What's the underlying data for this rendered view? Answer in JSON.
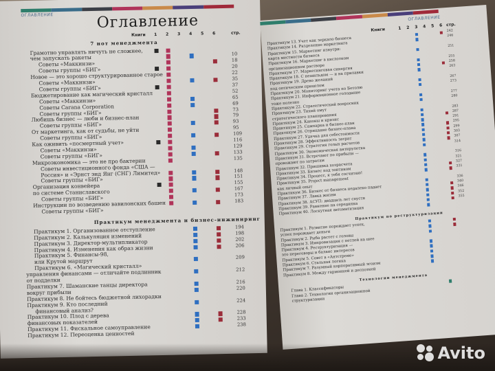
{
  "colors": {
    "book1": "#2a2a2a",
    "book2": "#b0345a",
    "book3": "#2f6fc0",
    "book4": "#2e7d6b",
    "book6": "#9b2d3a",
    "stripe": [
      "#2e7d6b",
      "#3a6d8a",
      "#3c3f46",
      "#b0345a",
      "#c98a4a",
      "#4a3f7a",
      "#a02a3a"
    ]
  },
  "left": {
    "header": "ОГЛАВЛЕНИЕ",
    "title": "Оглавление",
    "columns": {
      "label": "Книги",
      "nums": [
        "1",
        "2",
        "3",
        "4",
        "5",
        "6"
      ],
      "page": "стр."
    },
    "sections": [
      {
        "title": "7 нот менеджмента",
        "rows": [
          {
            "t": "Грамотно управлять ничуть не сложнее,",
            "i": 1,
            "m": [
              1,
              2
            ],
            "p": ""
          },
          {
            "t": "чем запускать ракеты",
            "i": 1,
            "m": [
              2,
              4
            ],
            "p": "10"
          },
          {
            "t": "Советы «Маккинзи»",
            "i": 2,
            "m": [
              2,
              6
            ],
            "p": "18"
          },
          {
            "t": "Советы группы «БИГ»",
            "i": 2,
            "m": [
              1,
              2
            ],
            "p": "20"
          },
          {
            "t": "Новое — это хорошо структурированное старое",
            "i": 1,
            "m": [
              2
            ],
            "p": "22"
          },
          {
            "t": "Советы «Маккинзи»",
            "i": 2,
            "m": [
              2,
              4,
              6
            ],
            "p": "35"
          },
          {
            "t": "Советы группы «БИГ»",
            "i": 2,
            "m": [
              1,
              2
            ],
            "p": "37"
          },
          {
            "t": "Бюджетирование как магический кристалл",
            "i": 1,
            "m": [
              2
            ],
            "p": "52"
          },
          {
            "t": "Советы «Маккинзи»",
            "i": 2,
            "m": [
              2,
              4
            ],
            "p": "65"
          },
          {
            "t": "Советы Carana Corporation",
            "i": 2,
            "m": [
              2,
              4
            ],
            "p": "69"
          },
          {
            "t": "Советы группы «БИГ»",
            "i": 2,
            "m": [
              2,
              6
            ],
            "p": "73"
          },
          {
            "t": "Любишь бизнес — люби и бизнес-план",
            "i": 1,
            "m": [
              2,
              6
            ],
            "p": "79"
          },
          {
            "t": "Советы группы «БИГ»",
            "i": 2,
            "m": [
              2,
              4,
              6
            ],
            "p": "93"
          },
          {
            "t": "От маркетинга, как от судьбы, не уйти",
            "i": 1,
            "m": [
              2
            ],
            "p": "95"
          },
          {
            "t": "Советы группы «БИГ»",
            "i": 2,
            "m": [
              2,
              4,
              6
            ],
            "p": "109"
          },
          {
            "t": "Как оживить «посмертный учет»",
            "i": 1,
            "m": [
              1,
              2
            ],
            "p": "116"
          },
          {
            "t": "Советы «Маккинзи»",
            "i": 2,
            "m": [
              2,
              4
            ],
            "p": "129"
          },
          {
            "t": "Советы группы «БИГ»",
            "i": 2,
            "m": [
              2,
              4,
              6
            ],
            "p": "133"
          },
          {
            "t": "Микроэкономика — это не про бактерии",
            "i": 1,
            "m": [
              2
            ],
            "p": "135"
          },
          {
            "t": "Советы инвестиционного фонда «США —",
            "i": 2,
            "m": [],
            "p": ""
          },
          {
            "t": "Россия» и «Эрнст энд Янг (СНГ) Лимитед»",
            "i": 2,
            "m": [
              2,
              4,
              6
            ],
            "p": "148"
          },
          {
            "t": "Советы группы «БИГ»",
            "i": 2,
            "m": [
              2,
              4,
              6
            ],
            "p": "151"
          },
          {
            "t": "Организация конвейера",
            "i": 1,
            "m": [
              1,
              2
            ],
            "p": "155"
          },
          {
            "t": "по системе Станиславского",
            "i": 1,
            "m": [
              2,
              4,
              6
            ],
            "p": "167"
          },
          {
            "t": "Советы группы «БИГ»",
            "i": 2,
            "m": [
              2
            ],
            "p": "173"
          },
          {
            "t": "Инструкции по возведению вавилонских башен",
            "i": 1,
            "m": [
              2,
              4,
              6
            ],
            "p": "183"
          },
          {
            "t": "Советы группы «БИГ»",
            "i": 2,
            "m": [],
            "p": ""
          }
        ]
      },
      {
        "title": "Практикум менеджмента и бизнес-инжиниринг",
        "rows": [
          {
            "t": "Практикум 1. Организованное отступление",
            "i": 1,
            "m": [
              4,
              6
            ],
            "p": "194"
          },
          {
            "t": "Практикум 2. Калькуляция изменений",
            "i": 1,
            "m": [
              4,
              6
            ],
            "p": "198"
          },
          {
            "t": "Практикум 3. Директор-мультипликатор",
            "i": 1,
            "m": [
              4,
              6
            ],
            "p": "202"
          },
          {
            "t": "Практикум 4. Изменения как образ жизни",
            "i": 1,
            "m": [
              4,
              6
            ],
            "p": "206"
          },
          {
            "t": "Практикум 5. Финансы-98,",
            "i": 1,
            "m": [],
            "p": ""
          },
          {
            "t": "или Крутой маршрут",
            "i": 1,
            "m": [
              4
            ],
            "p": "209"
          },
          {
            "t": "Практикум 6. «Магический кристалл»",
            "i": 1,
            "m": [],
            "p": ""
          },
          {
            "t": "управления финансами — отличайте подлинник",
            "i": 0,
            "m": [
              4
            ],
            "p": "212"
          },
          {
            "t": "от подделки",
            "i": 0,
            "m": [],
            "p": ""
          },
          {
            "t": "Практикум 7. Шаманские танцы директора",
            "i": 0,
            "m": [
              4
            ],
            "p": "216"
          },
          {
            "t": "вокруг прибыли",
            "i": 0,
            "m": [
              4
            ],
            "p": "220"
          },
          {
            "t": "Практикум 8. Не бойтесь бюджетной лихорадки",
            "i": 0,
            "m": [],
            "p": ""
          },
          {
            "t": "Практикум 9. Кто последний",
            "i": 0,
            "m": [
              4
            ],
            "p": "224"
          },
          {
            "t": "финансовый анализ?",
            "i": 1,
            "m": [],
            "p": ""
          },
          {
            "t": "Практикум 10. Плод с дерева",
            "i": 0,
            "m": [
              4,
              6
            ],
            "p": "228"
          },
          {
            "t": "финансовых показателей",
            "i": 0,
            "m": [
              4,
              6
            ],
            "p": "233"
          },
          {
            "t": "Практикум 11. Фискальное самоуправление",
            "i": 0,
            "m": [
              4
            ],
            "p": "238"
          },
          {
            "t": "Практикум 12. Переоценка ценностей",
            "i": 0,
            "m": [],
            "p": ""
          }
        ]
      }
    ]
  },
  "right": {
    "header": "ОГЛАВЛЕНИЕ",
    "columns": {
      "label": "Книги",
      "nums": [
        "1",
        "2",
        "3",
        "4",
        "5",
        "6"
      ],
      "page": "стр."
    },
    "sections": [
      {
        "title": "",
        "rows": [
          {
            "t": "Практикум 13. Учет как зеркало бизнеса",
            "i": 0,
            "m": [
              3,
              6
            ],
            "p": "242"
          },
          {
            "t": "Практикум 14. Разделение маркетинга",
            "i": 0,
            "m": [
              3
            ],
            "p": "246"
          },
          {
            "t": "Практикум 15. Маркетинг изнутри:",
            "i": 0,
            "m": [],
            "p": ""
          },
          {
            "t": "карта местности бизнеса",
            "i": 0,
            "m": [
              3
            ],
            "p": "251"
          },
          {
            "t": "Практикум 16. Маркетинг в кислотном",
            "i": 0,
            "m": [],
            "p": ""
          },
          {
            "t": "организационном растворе",
            "i": 0,
            "m": [
              3
            ],
            "p": "255"
          },
          {
            "t": "Практикум 17. Маркетинговая синергия",
            "i": 0,
            "m": [
              3,
              6
            ],
            "p": "258"
          },
          {
            "t": "Практикум 18. С нешильдом — и на прилавки",
            "i": 0,
            "m": [
              3
            ],
            "p": "263"
          },
          {
            "t": "Практикум 19. Древо желаний",
            "i": 0,
            "m": [],
            "p": ""
          },
          {
            "t": "под оптическим прицелом",
            "i": 0,
            "m": [
              3
            ],
            "p": "267"
          },
          {
            "t": "Практикум 20. Мониторинг учета по Бетолю",
            "i": 0,
            "m": [
              3
            ],
            "p": "273"
          },
          {
            "t": "Практикум 21. Информационное голодание",
            "i": 0,
            "m": [],
            "p": ""
          },
          {
            "t": "тоже полезно",
            "i": 0,
            "m": [
              3
            ],
            "p": "277"
          },
          {
            "t": "Практикум 22. Стратегический вопросник",
            "i": 0,
            "m": [
              3
            ],
            "p": "280"
          },
          {
            "t": "Практикум 23. Тихий омут",
            "i": 0,
            "m": [],
            "p": ""
          },
          {
            "t": "стратегического планирования",
            "i": 0,
            "m": [
              3
            ],
            "p": "283"
          },
          {
            "t": "Практикум 24. Каноны и кризис",
            "i": 0,
            "m": [
              3,
              6
            ],
            "p": "287"
          },
          {
            "t": "Практикум 25. Сампарка и бизнес-план",
            "i": 0,
            "m": [
              3
            ],
            "p": "291"
          },
          {
            "t": "Практикум 26. Отрицание бизнес-плана",
            "i": 0,
            "m": [
              3,
              6
            ],
            "p": "295"
          },
          {
            "t": "Практикум 27. Удачка для себестоимости",
            "i": 0,
            "m": [
              3,
              6
            ],
            "p": "299"
          },
          {
            "t": "Практикум 28. Эффективность затрат",
            "i": 0,
            "m": [
              3,
              6
            ],
            "p": "303"
          },
          {
            "t": "Практикум 29. Стратегия голых расчетов",
            "i": 0,
            "m": [
              3,
              6
            ],
            "p": "307"
          },
          {
            "t": "Практикум 30. Экономическая антирулетка",
            "i": 0,
            "m": [
              3
            ],
            "p": "314"
          },
          {
            "t": "Практикум 31. Встречают по прибыли —",
            "i": 0,
            "m": [],
            "p": ""
          },
          {
            "t": "провожают по затратам",
            "i": 0,
            "m": [
              3
            ],
            "p": "316"
          },
          {
            "t": "Практикум 32. Пришивка хозрасчета",
            "i": 0,
            "m": [
              3
            ],
            "p": "321"
          },
          {
            "t": "Практикум 33. Бизнес под зонтиком",
            "i": 0,
            "m": [
              3,
              6
            ],
            "p": "327"
          },
          {
            "t": "Практикум 34. Процесс, я тебя сосчитаю!",
            "i": 0,
            "m": [
              3,
              6
            ],
            "p": "331"
          },
          {
            "t": "Практикум 35. Project management",
            "i": 0,
            "m": [],
            "p": ""
          },
          {
            "t": "как личный опыт",
            "i": 0,
            "m": [
              3
            ],
            "p": "336"
          },
          {
            "t": "Практикум 36. Бизнес от бизнеса недалеко падает",
            "i": 0,
            "m": [
              3,
              6
            ],
            "p": "340"
          },
          {
            "t": "Практикум 37. Лавка жизни",
            "i": 0,
            "m": [
              3,
              6
            ],
            "p": "346"
          },
          {
            "t": "Практикум 38. АСУП: двадцать лет спустя",
            "i": 0,
            "m": [
              3,
              6
            ],
            "p": "352"
          },
          {
            "t": "Практикум 39. Равнение на середняка",
            "i": 0,
            "m": [
              3,
              6
            ],
            "p": "355"
          },
          {
            "t": "Практикум 40. Лоскутная автоматизация",
            "i": 0,
            "m": [
              3
            ],
            "p": ""
          }
        ]
      },
      {
        "title": "Практикум по реструктуризации",
        "rows": [
          {
            "t": "Практикум 1. Развитие порождает успех,",
            "i": 0,
            "m": [
              3,
              6
            ],
            "p": ""
          },
          {
            "t": "успех порождает деньги",
            "i": 0,
            "m": [
              3,
              6
            ],
            "p": ""
          },
          {
            "t": "Практикум 2. Рыба растет с головы",
            "i": 0,
            "m": [
              3
            ],
            "p": ""
          },
          {
            "t": "Практикум 3. Импровизация с петлей на шее",
            "i": 0,
            "m": [],
            "p": ""
          },
          {
            "t": "Практикум 4. Реструктуризация —",
            "i": 0,
            "m": [
              3
            ],
            "p": ""
          },
          {
            "t": "это переговоры и баланс интересов",
            "i": 0,
            "m": [
              3
            ],
            "p": ""
          },
          {
            "t": "Практикум 5. Совет в «Антстреме»",
            "i": 0,
            "m": [
              3
            ],
            "p": ""
          },
          {
            "t": "Практикум 6. Стальная логика",
            "i": 0,
            "m": [
              3
            ],
            "p": ""
          },
          {
            "t": "Практикум 7. Разумный корпоративный эгоизм",
            "i": 0,
            "m": [
              3
            ],
            "p": ""
          },
          {
            "t": "Практикум 8. Между гармонией и деспотией",
            "i": 0,
            "m": [],
            "p": ""
          }
        ]
      },
      {
        "title": "Технологии менеджмента",
        "rows": [
          {
            "t": "Глава 1. Классификаторы",
            "i": 1,
            "m": [
              5
            ],
            "p": ""
          },
          {
            "t": "Глава 2. Технологии организационной",
            "i": 1,
            "m": [],
            "p": ""
          },
          {
            "t": "структуризации",
            "i": 1,
            "m": [],
            "p": ""
          }
        ]
      }
    ]
  },
  "watermark": "Avito"
}
